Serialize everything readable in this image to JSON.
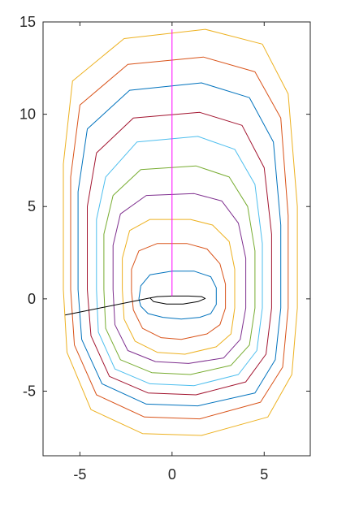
{
  "chart_data": {
    "type": "line",
    "title": "",
    "xlabel": "",
    "ylabel": "",
    "xlim": [
      -7,
      7.5
    ],
    "ylim": [
      -8.5,
      15
    ],
    "x_ticks": [
      -5,
      0,
      5
    ],
    "y_ticks": [
      -5,
      0,
      5,
      10,
      15
    ],
    "x_tick_labels": [
      "-5",
      "0",
      "5"
    ],
    "y_tick_labels": [
      "-5",
      "0",
      "5",
      "10",
      "15"
    ],
    "grid": false,
    "legend": "none",
    "series": [
      {
        "color": "#0072BD",
        "points": [
          [
            -1.8,
            0.0
          ],
          [
            -1.7,
            0.7
          ],
          [
            -1.2,
            1.3
          ],
          [
            0,
            1.5
          ],
          [
            1.2,
            1.5
          ],
          [
            2.1,
            1.2
          ],
          [
            2.4,
            0.6
          ],
          [
            2.4,
            -0.3
          ],
          [
            2.1,
            -0.8
          ],
          [
            1.5,
            -1.0
          ],
          [
            0.5,
            -1.1
          ],
          [
            -0.5,
            -1.0
          ],
          [
            -1.3,
            -0.8
          ],
          [
            -1.7,
            -0.4
          ],
          [
            -1.8,
            0.0
          ]
        ]
      },
      {
        "color": "#D95319",
        "points": [
          [
            -2.2,
            0.4
          ],
          [
            -2.2,
            1.6
          ],
          [
            -1.8,
            2.6
          ],
          [
            -0.8,
            3.0
          ],
          [
            0.8,
            3.0
          ],
          [
            1.9,
            2.7
          ],
          [
            2.6,
            1.9
          ],
          [
            2.9,
            0.8
          ],
          [
            2.9,
            -0.5
          ],
          [
            2.6,
            -1.4
          ],
          [
            1.9,
            -1.9
          ],
          [
            0.5,
            -2.2
          ],
          [
            -0.6,
            -2.1
          ],
          [
            -1.6,
            -1.6
          ],
          [
            -2.1,
            -0.6
          ],
          [
            -2.2,
            0.4
          ]
        ]
      },
      {
        "color": "#EDB120",
        "points": [
          [
            -2.7,
            0.5
          ],
          [
            -2.7,
            2.2
          ],
          [
            -2.3,
            3.7
          ],
          [
            -1.2,
            4.3
          ],
          [
            1.0,
            4.3
          ],
          [
            2.2,
            4.0
          ],
          [
            3.1,
            3.1
          ],
          [
            3.4,
            1.6
          ],
          [
            3.4,
            -0.5
          ],
          [
            3.2,
            -1.9
          ],
          [
            2.4,
            -2.6
          ],
          [
            0.7,
            -3.0
          ],
          [
            -0.8,
            -2.9
          ],
          [
            -2.0,
            -2.3
          ],
          [
            -2.6,
            -1.1
          ],
          [
            -2.7,
            0.5
          ]
        ]
      },
      {
        "color": "#7E2F8E",
        "points": [
          [
            -3.2,
            0.5
          ],
          [
            -3.2,
            2.9
          ],
          [
            -2.8,
            4.6
          ],
          [
            -1.4,
            5.6
          ],
          [
            1.2,
            5.7
          ],
          [
            2.7,
            5.3
          ],
          [
            3.6,
            4.1
          ],
          [
            4.0,
            2.2
          ],
          [
            4.0,
            -0.5
          ],
          [
            3.7,
            -2.2
          ],
          [
            2.8,
            -3.2
          ],
          [
            0.9,
            -3.5
          ],
          [
            -0.9,
            -3.4
          ],
          [
            -2.4,
            -2.8
          ],
          [
            -3.1,
            -1.4
          ],
          [
            -3.2,
            0.5
          ]
        ]
      },
      {
        "color": "#77AC30",
        "points": [
          [
            -3.7,
            0.5
          ],
          [
            -3.7,
            3.5
          ],
          [
            -3.2,
            5.6
          ],
          [
            -1.7,
            7.0
          ],
          [
            1.3,
            7.2
          ],
          [
            3.1,
            6.6
          ],
          [
            4.1,
            5.0
          ],
          [
            4.5,
            2.6
          ],
          [
            4.5,
            -0.5
          ],
          [
            4.2,
            -2.5
          ],
          [
            3.2,
            -3.6
          ],
          [
            1.0,
            -4.1
          ],
          [
            -1.1,
            -4.0
          ],
          [
            -2.8,
            -3.3
          ],
          [
            -3.6,
            -1.6
          ],
          [
            -3.7,
            0.5
          ]
        ]
      },
      {
        "color": "#4DBEEE",
        "points": [
          [
            -4.1,
            0.5
          ],
          [
            -4.1,
            4.3
          ],
          [
            -3.6,
            6.6
          ],
          [
            -1.9,
            8.5
          ],
          [
            1.4,
            8.8
          ],
          [
            3.4,
            8.1
          ],
          [
            4.5,
            6.2
          ],
          [
            4.9,
            3.0
          ],
          [
            4.9,
            -0.5
          ],
          [
            4.6,
            -2.8
          ],
          [
            3.6,
            -4.1
          ],
          [
            1.2,
            -4.7
          ],
          [
            -1.2,
            -4.6
          ],
          [
            -3.1,
            -3.8
          ],
          [
            -4.0,
            -1.8
          ],
          [
            -4.1,
            0.5
          ]
        ]
      },
      {
        "color": "#A2142F",
        "points": [
          [
            -4.6,
            0.5
          ],
          [
            -4.6,
            5.0
          ],
          [
            -4.1,
            7.9
          ],
          [
            -2.1,
            9.8
          ],
          [
            1.5,
            10.1
          ],
          [
            3.8,
            9.4
          ],
          [
            5.0,
            7.1
          ],
          [
            5.4,
            3.5
          ],
          [
            5.4,
            -0.5
          ],
          [
            5.1,
            -3.0
          ],
          [
            4.0,
            -4.5
          ],
          [
            1.3,
            -5.2
          ],
          [
            -1.3,
            -5.1
          ],
          [
            -3.4,
            -4.2
          ],
          [
            -4.4,
            -2.0
          ],
          [
            -4.6,
            0.5
          ]
        ]
      },
      {
        "color": "#0072BD",
        "points": [
          [
            -5.1,
            0.5
          ],
          [
            -5.1,
            5.8
          ],
          [
            -4.6,
            9.2
          ],
          [
            -2.3,
            11.3
          ],
          [
            1.6,
            11.7
          ],
          [
            4.2,
            10.9
          ],
          [
            5.5,
            8.5
          ],
          [
            5.9,
            4.0
          ],
          [
            5.9,
            -0.5
          ],
          [
            5.6,
            -3.3
          ],
          [
            4.5,
            -5.1
          ],
          [
            1.4,
            -5.8
          ],
          [
            -1.4,
            -5.7
          ],
          [
            -3.8,
            -4.6
          ],
          [
            -4.9,
            -2.2
          ],
          [
            -5.1,
            0.5
          ]
        ]
      },
      {
        "color": "#D95319",
        "points": [
          [
            -5.5,
            0.5
          ],
          [
            -5.5,
            6.6
          ],
          [
            -5.0,
            10.5
          ],
          [
            -2.4,
            12.7
          ],
          [
            1.7,
            13.1
          ],
          [
            4.5,
            12.3
          ],
          [
            5.9,
            9.8
          ],
          [
            6.3,
            4.5
          ],
          [
            6.3,
            -0.5
          ],
          [
            6.0,
            -3.7
          ],
          [
            4.8,
            -5.6
          ],
          [
            1.5,
            -6.5
          ],
          [
            -1.5,
            -6.4
          ],
          [
            -4.1,
            -5.2
          ],
          [
            -5.3,
            -2.5
          ],
          [
            -5.5,
            0.5
          ]
        ]
      },
      {
        "color": "#EDB120",
        "points": [
          [
            -5.9,
            0.5
          ],
          [
            -5.9,
            7.3
          ],
          [
            -5.4,
            11.8
          ],
          [
            -2.6,
            14.1
          ],
          [
            1.8,
            14.6
          ],
          [
            4.9,
            13.8
          ],
          [
            6.3,
            11.1
          ],
          [
            6.8,
            5.0
          ],
          [
            6.8,
            -0.5
          ],
          [
            6.5,
            -4.1
          ],
          [
            5.2,
            -6.4
          ],
          [
            1.6,
            -7.4
          ],
          [
            -1.6,
            -7.3
          ],
          [
            -4.4,
            -6.0
          ],
          [
            -5.7,
            -2.9
          ],
          [
            -5.9,
            0.5
          ]
        ]
      },
      {
        "color": "#000000",
        "points": [
          [
            -1.2,
            0.05
          ],
          [
            -0.8,
            0.12
          ],
          [
            0,
            0.15
          ],
          [
            0.9,
            0.15
          ],
          [
            1.6,
            0.12
          ],
          [
            1.8,
            0.02
          ],
          [
            1.4,
            -0.15
          ],
          [
            0.6,
            -0.28
          ],
          [
            -0.3,
            -0.28
          ],
          [
            -1.0,
            -0.15
          ],
          [
            -1.2,
            0.05
          ]
        ]
      },
      {
        "color": "#000000",
        "points": [
          [
            -5.8,
            -0.88
          ],
          [
            -1.2,
            0.05
          ]
        ]
      },
      {
        "color": "#FF00FF",
        "points": [
          [
            0,
            0.15
          ],
          [
            0,
            14.6
          ]
        ]
      }
    ]
  }
}
